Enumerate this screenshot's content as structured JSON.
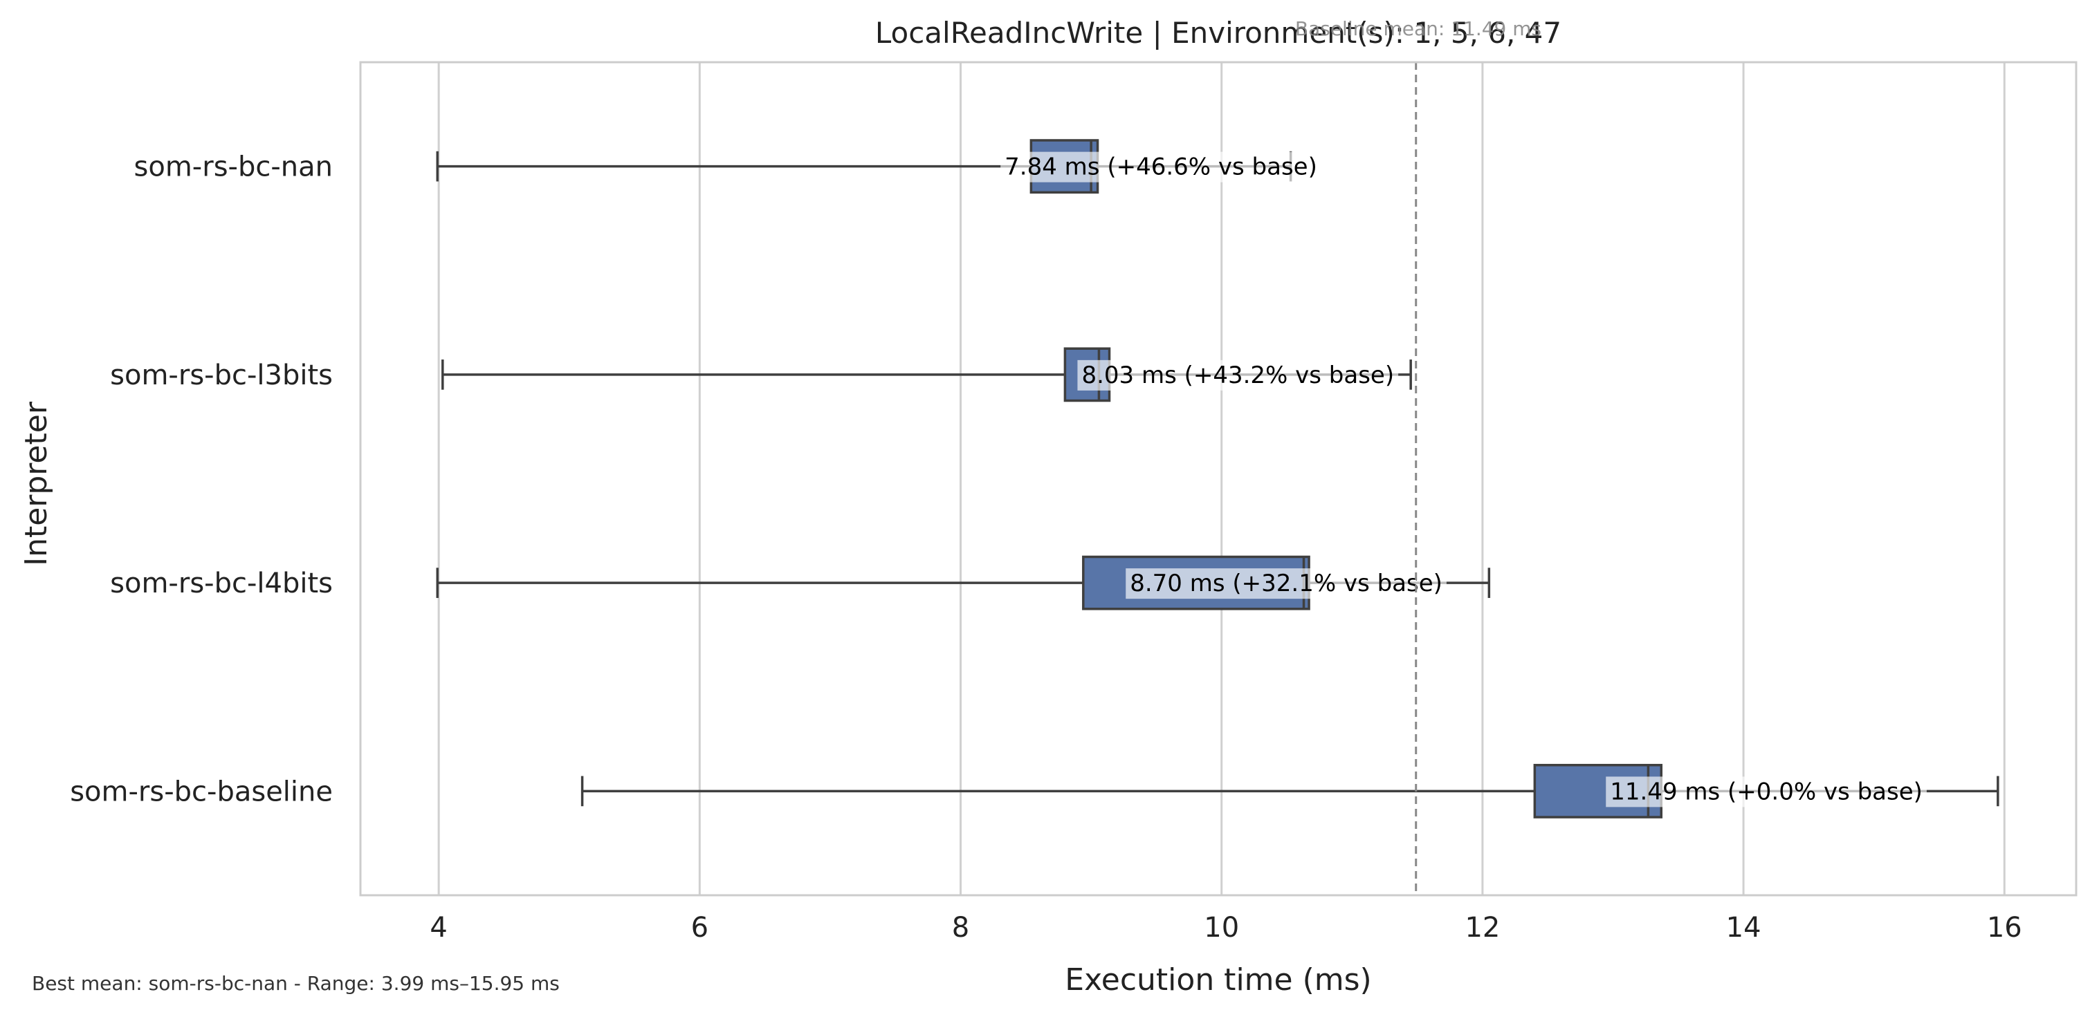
{
  "chart_data": {
    "type": "boxplot",
    "orientation": "horizontal",
    "title": "LocalReadIncWrite | Environment(s): 1, 5, 6, 47",
    "xlabel": "Execution time (ms)",
    "ylabel": "Interpreter",
    "xlim": [
      3.4,
      16.55
    ],
    "xticks": [
      4,
      6,
      8,
      10,
      12,
      14,
      16
    ],
    "grid": "vertical",
    "box_color": "#5875a8",
    "baseline": {
      "value": 11.49,
      "label": "Baseline mean: 11.49 ms"
    },
    "series": [
      {
        "name": "som-rs-bc-nan",
        "whisker_low": 3.99,
        "q1": 8.54,
        "median": 9.0,
        "q3": 9.05,
        "whisker_high": 10.53,
        "label": "7.84 ms  (+46.6% vs base)"
      },
      {
        "name": "som-rs-bc-l3bits",
        "whisker_low": 4.03,
        "q1": 8.8,
        "median": 9.06,
        "q3": 9.14,
        "whisker_high": 11.45,
        "label": "8.03 ms  (+43.2% vs base)"
      },
      {
        "name": "som-rs-bc-l4bits",
        "whisker_low": 3.99,
        "q1": 8.94,
        "median": 10.63,
        "q3": 10.67,
        "whisker_high": 12.05,
        "label": "8.70 ms  (+32.1% vs base)"
      },
      {
        "name": "som-rs-bc-baseline",
        "whisker_low": 5.1,
        "q1": 12.4,
        "median": 13.27,
        "q3": 13.37,
        "whisker_high": 15.95,
        "label": "11.49 ms  (+0.0% vs base)"
      }
    ]
  },
  "footer": {
    "note": "Best mean: som-rs-bc-nan - Range: 3.99 ms–15.95 ms"
  }
}
